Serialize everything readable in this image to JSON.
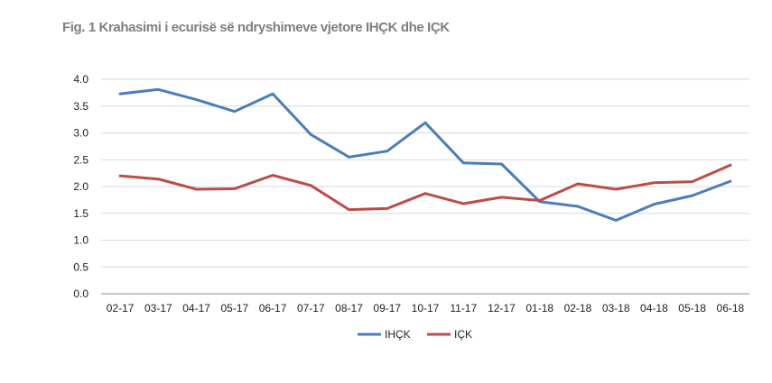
{
  "chart_data": {
    "type": "line",
    "title": "Fig. 1 Krahasimi i ecurisë së ndryshimeve vjetore IHÇK dhe IÇK",
    "categories": [
      "02-17",
      "03-17",
      "04-17",
      "05-17",
      "06-17",
      "07-17",
      "08-17",
      "09-17",
      "10-17",
      "11-17",
      "12-17",
      "01-18",
      "02-18",
      "03-18",
      "04-18",
      "05-18",
      "06-18"
    ],
    "series": [
      {
        "name": "IHÇK",
        "color": "#4a7ebb",
        "values": [
          3.73,
          3.81,
          3.62,
          3.4,
          3.73,
          2.97,
          2.55,
          2.66,
          3.19,
          2.44,
          2.42,
          1.72,
          1.63,
          1.37,
          1.67,
          1.83,
          2.1
        ]
      },
      {
        "name": "IÇK",
        "color": "#be4b48",
        "values": [
          2.2,
          2.14,
          1.95,
          1.96,
          2.21,
          2.02,
          1.57,
          1.59,
          1.87,
          1.68,
          1.8,
          1.74,
          2.05,
          1.95,
          2.07,
          2.09,
          2.4
        ]
      }
    ],
    "yticks": [
      "0.0",
      "0.5",
      "1.0",
      "1.5",
      "2.0",
      "2.5",
      "3.0",
      "3.5",
      "4.0"
    ],
    "ylim": [
      0,
      4
    ],
    "grid": true,
    "legend": "bottom-center",
    "xlabel": "",
    "ylabel": ""
  }
}
